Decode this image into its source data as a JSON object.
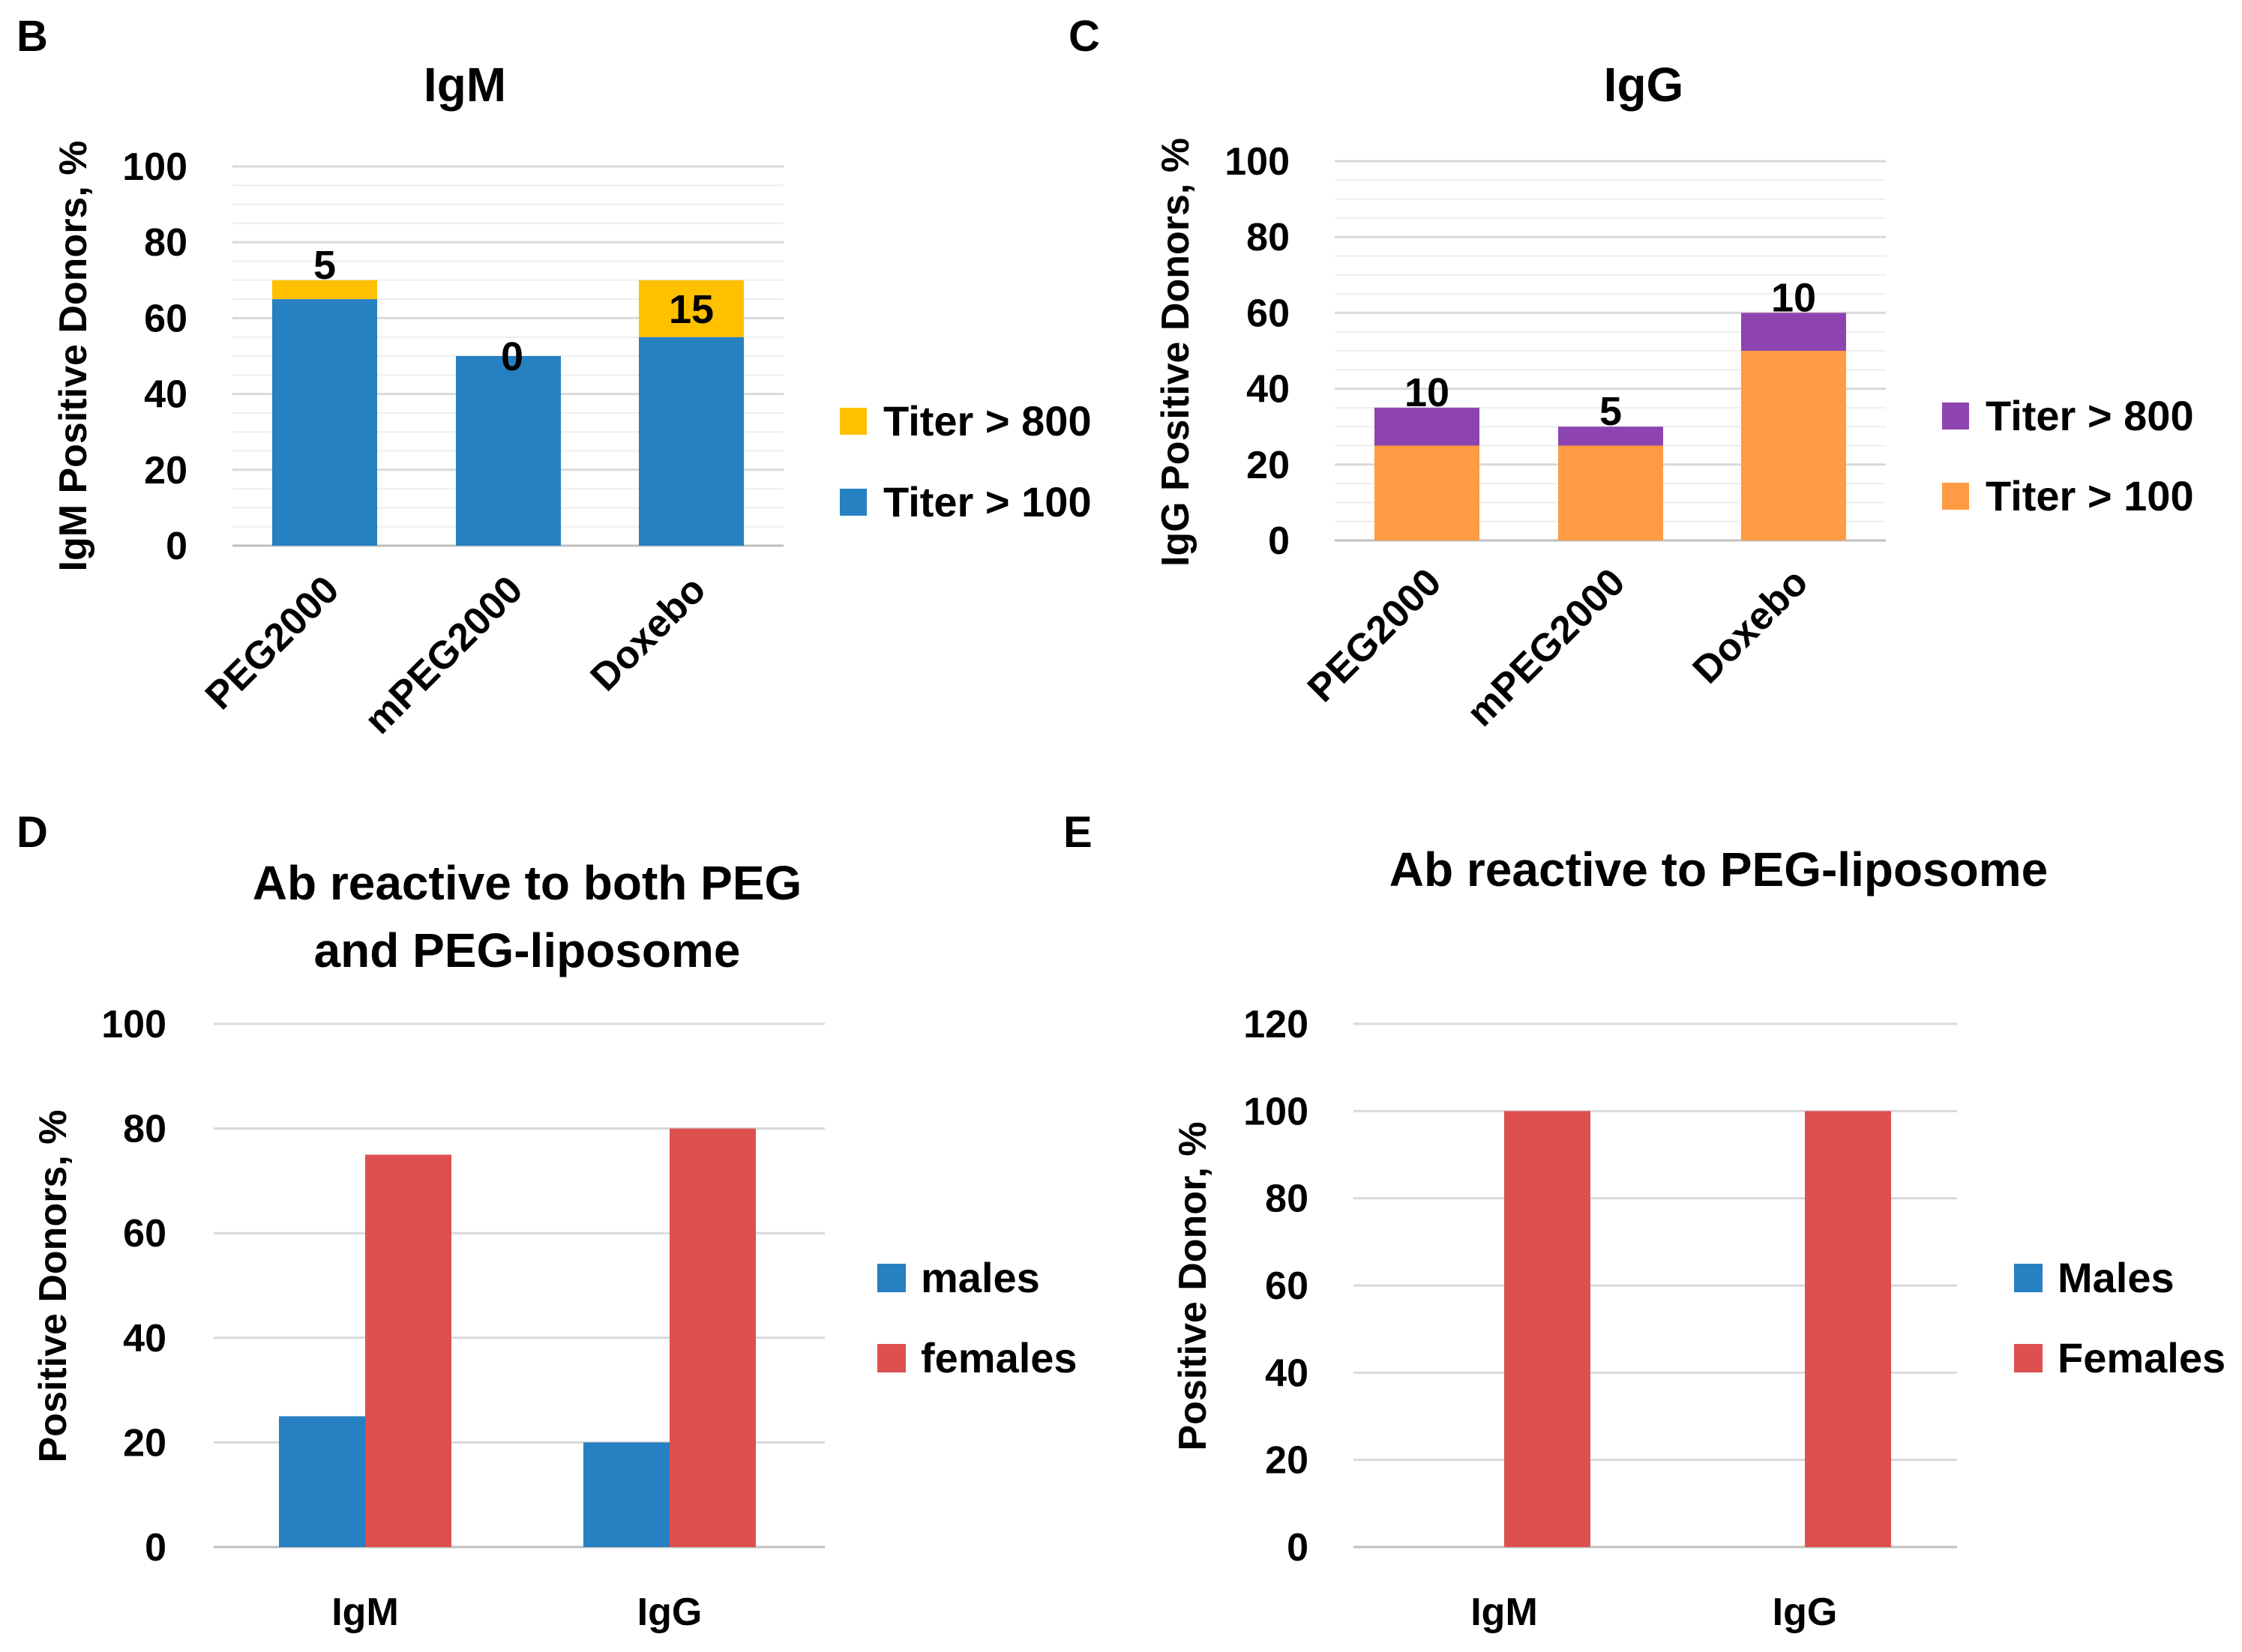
{
  "chart_data": [
    {
      "panel": "B",
      "type": "bar",
      "stacked": true,
      "title": "IgM",
      "ylabel": "IgM Positive Donors, %",
      "xlabel": "",
      "ylim": [
        0,
        100
      ],
      "yticks": [
        0,
        20,
        40,
        60,
        80,
        100
      ],
      "categories": [
        "PEG2000",
        "mPEG2000",
        "Doxebo"
      ],
      "series": [
        {
          "name": "Titer > 100",
          "color": "#2680C2",
          "values": [
            65,
            50,
            55
          ]
        },
        {
          "name": "Titer > 800",
          "color": "#FFC000",
          "values": [
            5,
            0,
            15
          ]
        }
      ],
      "data_labels": [
        "5",
        "0",
        "15"
      ],
      "legend": [
        {
          "label": "Titer > 800",
          "color": "#FFC000"
        },
        {
          "label": "Titer > 100",
          "color": "#2680C2"
        }
      ]
    },
    {
      "panel": "C",
      "type": "bar",
      "stacked": true,
      "title": "IgG",
      "ylabel": "IgG Positive Donors, %",
      "xlabel": "",
      "ylim": [
        0,
        100
      ],
      "yticks": [
        0,
        20,
        40,
        60,
        80,
        100
      ],
      "categories": [
        "PEG2000",
        "mPEG2000",
        "Doxebo"
      ],
      "series": [
        {
          "name": "Titer > 100",
          "color": "#FF9B42",
          "values": [
            25,
            25,
            50
          ]
        },
        {
          "name": "Titer > 800",
          "color": "#8E44B0",
          "values": [
            10,
            5,
            10
          ]
        }
      ],
      "data_labels": [
        "10",
        "5",
        "10"
      ],
      "legend": [
        {
          "label": "Titer > 800",
          "color": "#8E44B0"
        },
        {
          "label": "Titer > 100",
          "color": "#FF9B42"
        }
      ]
    },
    {
      "panel": "D",
      "type": "bar",
      "stacked": false,
      "title": [
        "Ab reactive to both PEG",
        "and PEG-liposome"
      ],
      "ylabel": "Positive Donors, %",
      "xlabel": "",
      "ylim": [
        0,
        100
      ],
      "yticks": [
        0,
        20,
        40,
        60,
        80,
        100
      ],
      "categories": [
        "IgM",
        "IgG"
      ],
      "series": [
        {
          "name": "males",
          "color": "#2680C2",
          "values": [
            25,
            20
          ]
        },
        {
          "name": "females",
          "color": "#DE5050",
          "values": [
            75,
            80
          ]
        }
      ],
      "legend": [
        {
          "label": "males",
          "color": "#2680C2"
        },
        {
          "label": "females",
          "color": "#DE5050"
        }
      ]
    },
    {
      "panel": "E",
      "type": "bar",
      "stacked": false,
      "title": [
        "Ab reactive to PEG-liposome"
      ],
      "ylabel": "Positive Donor, %",
      "xlabel": "",
      "ylim": [
        0,
        120
      ],
      "yticks": [
        0,
        20,
        40,
        60,
        80,
        100,
        120
      ],
      "categories": [
        "IgM",
        "IgG"
      ],
      "series": [
        {
          "name": "Males",
          "color": "#2680C2",
          "values": [
            0,
            0
          ]
        },
        {
          "name": "Females",
          "color": "#DE5050",
          "values": [
            100,
            100
          ]
        }
      ],
      "legend": [
        {
          "label": "Males",
          "color": "#2680C2"
        },
        {
          "label": "Females",
          "color": "#DE5050"
        }
      ]
    }
  ]
}
